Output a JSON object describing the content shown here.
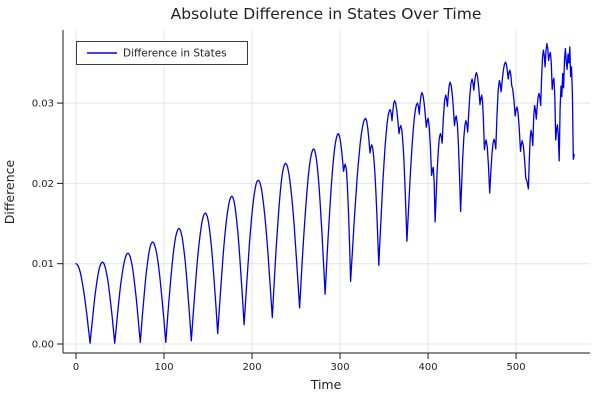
{
  "chart_data": {
    "type": "line",
    "title": "Absolute Difference in States Over Time",
    "xlabel": "Time",
    "ylabel": "Difference",
    "legend": {
      "label": "Difference in States",
      "position": "top-left"
    },
    "grid": true,
    "xlim": [
      -14.8,
      584
    ],
    "ylim": [
      -0.00112,
      0.0391
    ],
    "x_ticks": [
      {
        "v": 0,
        "label": "0"
      },
      {
        "v": 100,
        "label": "100"
      },
      {
        "v": 200,
        "label": "200"
      },
      {
        "v": 300,
        "label": "300"
      },
      {
        "v": 400,
        "label": "400"
      },
      {
        "v": 500,
        "label": "500"
      }
    ],
    "y_ticks": [
      {
        "v": 0.0,
        "label": "0.00"
      },
      {
        "v": 0.01,
        "label": "0.01"
      },
      {
        "v": 0.02,
        "label": "0.02"
      },
      {
        "v": 0.03,
        "label": "0.03"
      }
    ],
    "series": [
      {
        "name": "Difference in States",
        "color": "#0000e6",
        "keypoints": [
          [
            0,
            0.01
          ],
          [
            16,
            0.0001
          ],
          [
            30,
            0.0102
          ],
          [
            44,
            0.0001
          ],
          [
            59,
            0.0113
          ],
          [
            73,
            0.0002
          ],
          [
            87,
            0.0127
          ],
          [
            102,
            0.0002
          ],
          [
            117,
            0.0144
          ],
          [
            131,
            0.0004
          ],
          [
            147,
            0.0163
          ],
          [
            161,
            0.0013
          ],
          [
            177,
            0.0184
          ],
          [
            191,
            0.0024
          ],
          [
            207,
            0.0204
          ],
          [
            223,
            0.0033
          ],
          [
            238,
            0.0225
          ],
          [
            254,
            0.0045
          ],
          [
            270,
            0.0243
          ],
          [
            283,
            0.0062
          ],
          [
            298,
            0.0262
          ],
          [
            304,
            0.0215
          ],
          [
            306,
            0.0224
          ],
          [
            312,
            0.0078
          ],
          [
            329,
            0.0281
          ],
          [
            334,
            0.0238
          ],
          [
            336,
            0.0248
          ],
          [
            344,
            0.0098
          ],
          [
            357,
            0.0292
          ],
          [
            359,
            0.0278
          ],
          [
            362,
            0.0303
          ],
          [
            367,
            0.0262
          ],
          [
            369,
            0.0272
          ],
          [
            376,
            0.0128
          ],
          [
            388,
            0.03
          ],
          [
            390,
            0.0286
          ],
          [
            393,
            0.0313
          ],
          [
            398,
            0.027
          ],
          [
            400,
            0.0281
          ],
          [
            404,
            0.021
          ],
          [
            406,
            0.022
          ],
          [
            408,
            0.0152
          ],
          [
            414,
            0.0262
          ],
          [
            416,
            0.025
          ],
          [
            420,
            0.031
          ],
          [
            422,
            0.0296
          ],
          [
            425,
            0.0326
          ],
          [
            430,
            0.0272
          ],
          [
            432,
            0.0284
          ],
          [
            437,
            0.0165
          ],
          [
            443,
            0.0278
          ],
          [
            445,
            0.0264
          ],
          [
            450,
            0.033
          ],
          [
            452,
            0.0316
          ],
          [
            455,
            0.0338
          ],
          [
            459,
            0.0298
          ],
          [
            461,
            0.031
          ],
          [
            464,
            0.0242
          ],
          [
            466,
            0.0254
          ],
          [
            470,
            0.0188
          ],
          [
            475,
            0.0255
          ],
          [
            477,
            0.0243
          ],
          [
            481,
            0.0328
          ],
          [
            483,
            0.0314
          ],
          [
            488,
            0.0351
          ],
          [
            491,
            0.033
          ],
          [
            493,
            0.0341
          ],
          [
            495,
            0.0322
          ],
          [
            499,
            0.0284
          ],
          [
            501,
            0.0295
          ],
          [
            505,
            0.024
          ],
          [
            507,
            0.0253
          ],
          [
            511,
            0.0206
          ],
          [
            514,
            0.0193
          ],
          [
            517,
            0.0266
          ],
          [
            519,
            0.0247
          ],
          [
            521,
            0.0297
          ],
          [
            523,
            0.028
          ],
          [
            526,
            0.0312
          ],
          [
            528,
            0.0297
          ],
          [
            531,
            0.0366
          ],
          [
            533,
            0.0345
          ],
          [
            535,
            0.0374
          ],
          [
            537,
            0.0353
          ],
          [
            539,
            0.0363
          ],
          [
            541,
            0.0317
          ],
          [
            543,
            0.0331
          ],
          [
            545,
            0.0254
          ],
          [
            547,
            0.0273
          ],
          [
            549,
            0.0228
          ],
          [
            551,
            0.0321
          ],
          [
            552,
            0.0308
          ],
          [
            553,
            0.0337
          ],
          [
            554,
            0.0319
          ],
          [
            556,
            0.0368
          ],
          [
            557,
            0.0352
          ],
          [
            558,
            0.0342
          ],
          [
            559,
            0.0361
          ],
          [
            560,
            0.035
          ],
          [
            561,
            0.037
          ],
          [
            562,
            0.0333
          ],
          [
            563,
            0.0345
          ],
          [
            565,
            0.023
          ],
          [
            566,
            0.0236
          ]
        ]
      }
    ]
  },
  "colors": {
    "background": "#ffffff",
    "grid": "#e4e4e4",
    "spine": "#1a1a1a",
    "tick_text": "#1f1f1f",
    "line": "#0000e6",
    "legend_border": "#3a3a3a"
  }
}
